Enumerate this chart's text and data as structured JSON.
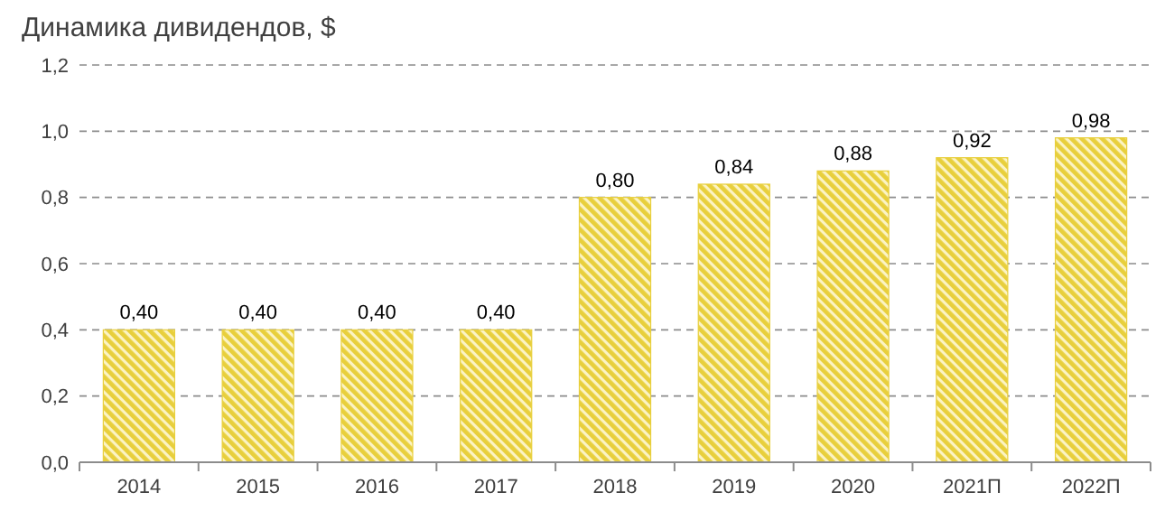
{
  "chart_data": {
    "type": "bar",
    "title": "Динамика дивидендов, $",
    "categories": [
      "2014",
      "2015",
      "2016",
      "2017",
      "2018",
      "2019",
      "2020",
      "2021П",
      "2022П"
    ],
    "values": [
      0.4,
      0.4,
      0.4,
      0.4,
      0.8,
      0.84,
      0.88,
      0.92,
      0.98
    ],
    "value_labels": [
      "0,40",
      "0,40",
      "0,40",
      "0,40",
      "0,80",
      "0,84",
      "0,88",
      "0,92",
      "0,98"
    ],
    "color": "#e8cf3c",
    "ylim": [
      0,
      1.2
    ],
    "yticks": [
      {
        "value": 0,
        "label": "0,0"
      },
      {
        "value": 0.2,
        "label": "0,2"
      },
      {
        "value": 0.4,
        "label": "0,4"
      },
      {
        "value": 0.6,
        "label": "0,6"
      },
      {
        "value": 0.8,
        "label": "0,8"
      },
      {
        "value": 1.0,
        "label": "1,0"
      },
      {
        "value": 1.2,
        "label": "1,2"
      }
    ],
    "grid": "y"
  }
}
